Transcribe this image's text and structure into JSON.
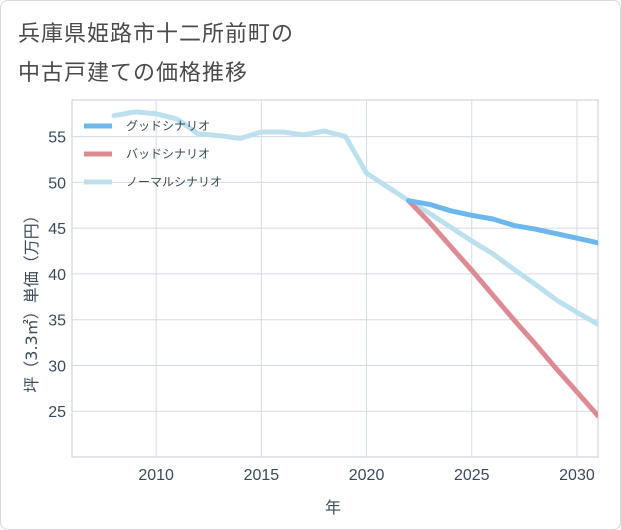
{
  "title_line1": "兵庫県姫路市十二所前町の",
  "title_line2": "中古戸建ての価格推移",
  "chart_data": {
    "type": "line",
    "title": "兵庫県姫路市十二所前町の中古戸建ての価格推移",
    "xlabel": "年",
    "ylabel": "坪（3.3㎡）単価（万円）",
    "xlim": [
      2006,
      2031
    ],
    "ylim": [
      20,
      59
    ],
    "xticks": [
      2010,
      2015,
      2020,
      2025,
      2030
    ],
    "yticks": [
      25,
      30,
      35,
      40,
      45,
      50,
      55
    ],
    "legend_position": "top-left",
    "series": [
      {
        "name": "グッドシナリオ",
        "color": "#6cb8ec",
        "x": [
          2022,
          2023,
          2024,
          2025,
          2026,
          2027,
          2028,
          2029,
          2030,
          2031
        ],
        "y": [
          48.0,
          47.6,
          46.9,
          46.4,
          46.0,
          45.3,
          44.9,
          44.4,
          43.9,
          43.4
        ]
      },
      {
        "name": "バッドシナリオ",
        "color": "#dd8b93",
        "x": [
          2022,
          2023,
          2024,
          2025,
          2026,
          2027,
          2028,
          2029,
          2030,
          2031
        ],
        "y": [
          48.0,
          45.6,
          43.0,
          40.4,
          37.7,
          35.0,
          32.4,
          29.7,
          27.1,
          24.5
        ]
      },
      {
        "name": "ノーマルシナリオ",
        "color": "#bde0ee",
        "x": [
          2008,
          2009,
          2010,
          2011,
          2012,
          2013,
          2014,
          2015,
          2016,
          2017,
          2018,
          2019,
          2020,
          2021,
          2022,
          2023,
          2024,
          2025,
          2026,
          2027,
          2028,
          2029,
          2030,
          2031
        ],
        "y": [
          57.3,
          57.7,
          57.5,
          56.9,
          55.3,
          55.1,
          54.8,
          55.5,
          55.5,
          55.2,
          55.6,
          55.0,
          51.0,
          49.5,
          48.0,
          46.6,
          45.1,
          43.6,
          42.2,
          40.5,
          38.9,
          37.2,
          35.8,
          34.5
        ]
      }
    ]
  }
}
